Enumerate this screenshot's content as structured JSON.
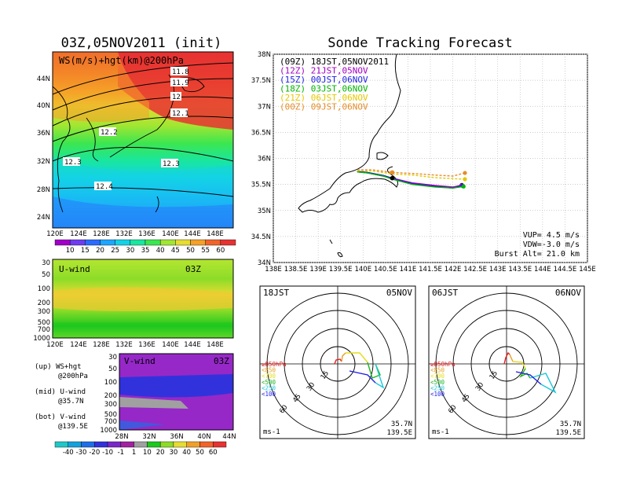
{
  "left_title": "03Z,05NOV2011 (init)",
  "right_title": "Sonde Tracking Forecast",
  "map_panel": {
    "label": "WS(m/s)+hgt(km)@200hPa",
    "lat_ticks": [
      "44N",
      "40N",
      "36N",
      "32N",
      "28N",
      "24N"
    ],
    "lon_ticks": [
      "120E",
      "124E",
      "128E",
      "132E",
      "136E",
      "140E",
      "144E",
      "148E"
    ],
    "contour_labels": [
      "11.8",
      "11.9",
      "12",
      "12.1",
      "12.2",
      "12.3",
      "12.3",
      "12.4"
    ],
    "colorbar_labels": [
      "10",
      "15",
      "20",
      "25",
      "30",
      "35",
      "40",
      "45",
      "50",
      "55",
      "60"
    ],
    "colorbar_colors": [
      "#a000c8",
      "#6e3cf0",
      "#2b6cff",
      "#1ea6ff",
      "#14d2e6",
      "#19e6a0",
      "#3ce650",
      "#a0e632",
      "#e6dc32",
      "#f5a028",
      "#f06428",
      "#e63232"
    ]
  },
  "u_panel": {
    "label": "U-wind",
    "time": "03Z",
    "p_ticks": [
      "30",
      "50",
      "100",
      "200",
      "300",
      "500",
      "700",
      "1000"
    ],
    "lon_ticks": [
      "120E",
      "124E",
      "128E",
      "132E",
      "136E",
      "140E",
      "144E",
      "148E"
    ]
  },
  "v_panel": {
    "label": "V-wind",
    "time": "03Z",
    "p_ticks": [
      "30",
      "50",
      "100",
      "200",
      "300",
      "500",
      "700",
      "1000"
    ],
    "lat_ticks": [
      "28N",
      "32N",
      "36N",
      "40N",
      "44N"
    ]
  },
  "wind_colorbar_labels": [
    "-40",
    "-30",
    "-20",
    "-10",
    "-1",
    "1",
    "10",
    "20",
    "30",
    "40",
    "50",
    "60"
  ],
  "wind_colorbar_colors": [
    "#1ec8c8",
    "#14a0dc",
    "#1e6ee6",
    "#3232dc",
    "#7a28c8",
    "#a020a0",
    "#a0a0a0",
    "#1ec81e",
    "#8cdc28",
    "#e6dc32",
    "#f0a028",
    "#f06428",
    "#e63232"
  ],
  "legend_notes": [
    {
      "a": "(up) WS+hgt",
      "b": "@200hPa"
    },
    {
      "a": "(mid) U-wind",
      "b": "@35.7N"
    },
    {
      "a": "(bot) V-wind",
      "b": "@139.5E"
    }
  ],
  "track_map": {
    "lat_ticks": [
      "38N",
      "37.5N",
      "37N",
      "36.5N",
      "36N",
      "35.5N",
      "35N",
      "34.5N",
      "34N"
    ],
    "lon_ticks": [
      "138E",
      "138.5E",
      "139E",
      "139.5E",
      "140E",
      "140.5E",
      "141E",
      "141.5E",
      "142E",
      "142.5E",
      "143E",
      "143.5E",
      "144E",
      "144.5E",
      "145E"
    ],
    "legend": [
      {
        "text": "(09Z) 18JST,05NOV2011",
        "color": "#000000"
      },
      {
        "text": "(12Z) 21JST,05NOV",
        "color": "#a000c8"
      },
      {
        "text": "(15Z) 00JST,06NOV",
        "color": "#1e1ee6"
      },
      {
        "text": "(18Z) 03JST,06NOV",
        "color": "#00b400"
      },
      {
        "text": "(21Z) 06JST,06NOV",
        "color": "#e6c800"
      },
      {
        "text": "(00Z) 09JST,06NOV",
        "color": "#e68c28"
      }
    ],
    "info": [
      "VUP= 4.5 m/s",
      "VDW=-3.0 m/s",
      "Burst Alt= 21.0 km"
    ]
  },
  "hodo_left": {
    "time": "18JST",
    "date": "05NOV",
    "lat": "35.7N",
    "lon": "139.5E",
    "units": "ms-1",
    "rings": [
      "15",
      "30",
      "45",
      "60"
    ]
  },
  "hodo_right": {
    "time": "06JST",
    "date": "06NOV",
    "lat": "35.7N",
    "lon": "139.5E",
    "units": "ms-1",
    "rings": [
      "15",
      "30",
      "45",
      "60"
    ]
  },
  "hodo_legend": [
    {
      "text": "≥850hPa",
      "color": "#e61e1e"
    },
    {
      "text": "<850",
      "color": "#e6a028"
    },
    {
      "text": "<700",
      "color": "#e6dc1e"
    },
    {
      "text": "<500",
      "color": "#1eb41e"
    },
    {
      "text": "<250",
      "color": "#1ec8dc"
    },
    {
      "text": "<100",
      "color": "#1e1ee6"
    }
  ],
  "chart_data": [
    {
      "type": "line",
      "title": "Sonde Tracking Forecast",
      "xlabel": "",
      "ylabel": "",
      "xlim": [
        138,
        145
      ],
      "ylim": [
        34,
        38
      ],
      "series": [
        {
          "name": "(09Z) 18JST,05NOV2011",
          "x": [
            139.87,
            140.1,
            140.45,
            140.65,
            141.1,
            141.6,
            142.0,
            142.2
          ],
          "y": [
            35.75,
            35.73,
            35.67,
            35.62,
            35.52,
            35.47,
            35.44,
            35.49
          ]
        },
        {
          "name": "(12Z) 21JST,05NOV",
          "x": [
            139.87,
            140.1,
            140.45,
            140.65,
            141.1,
            141.6,
            142.0,
            142.2
          ],
          "y": [
            35.74,
            35.72,
            35.66,
            35.62,
            35.53,
            35.48,
            35.45,
            35.48
          ]
        },
        {
          "name": "(15Z) 00JST,06NOV",
          "x": [
            139.87,
            140.1,
            140.45,
            140.65,
            141.1,
            141.6,
            142.0,
            142.22
          ],
          "y": [
            35.75,
            35.73,
            35.67,
            35.61,
            35.51,
            35.46,
            35.43,
            35.47
          ]
        },
        {
          "name": "(18Z) 03JST,06NOV",
          "x": [
            139.87,
            140.1,
            140.45,
            140.65,
            141.1,
            141.6,
            142.0,
            142.24
          ],
          "y": [
            35.74,
            35.72,
            35.66,
            35.6,
            35.5,
            35.45,
            35.43,
            35.46
          ]
        },
        {
          "name": "(21Z) 06JST,06NOV",
          "x": [
            139.87,
            140.2,
            140.65,
            141.1,
            141.6,
            142.0,
            142.27
          ],
          "y": [
            35.76,
            35.76,
            35.7,
            35.68,
            35.63,
            35.61,
            35.6
          ]
        },
        {
          "name": "(00Z) 09JST,06NOV",
          "x": [
            139.87,
            140.2,
            140.65,
            141.1,
            141.6,
            142.0,
            142.27
          ],
          "y": [
            35.78,
            35.78,
            35.73,
            35.71,
            35.68,
            35.66,
            35.72
          ]
        }
      ]
    }
  ]
}
